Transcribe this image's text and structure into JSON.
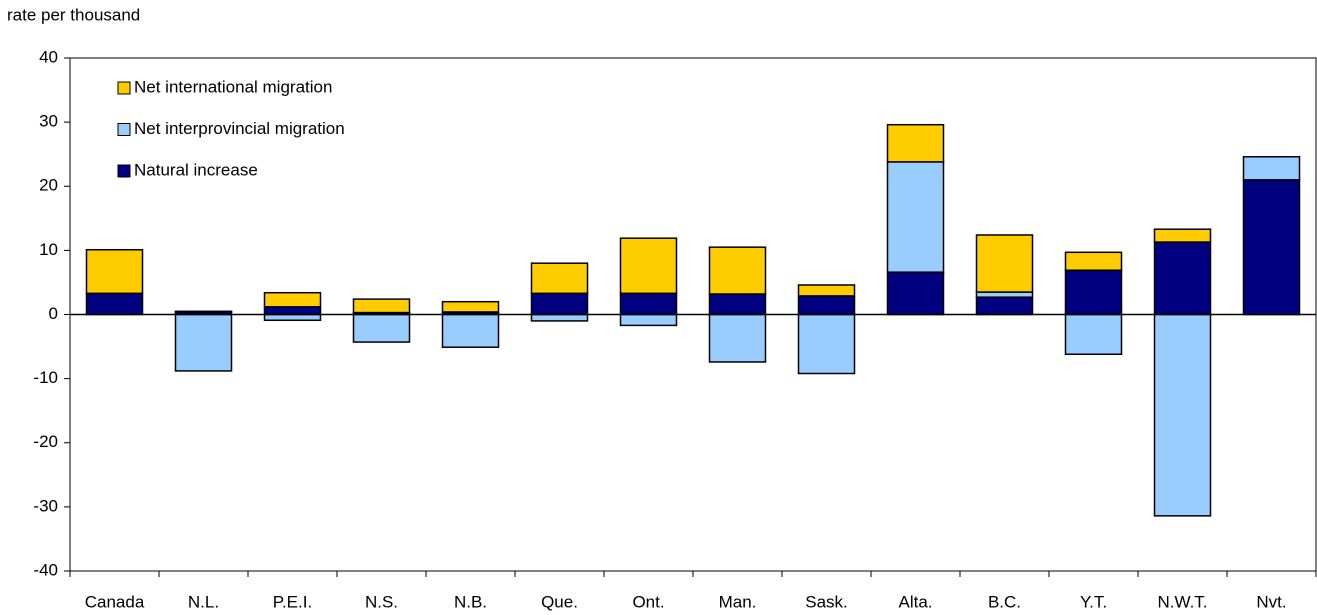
{
  "chart_data": {
    "type": "stacked_bar",
    "y_label": "rate per thousand",
    "categories": [
      "Canada",
      "N.L.",
      "P.E.I.",
      "N.S.",
      "N.B.",
      "Que.",
      "Ont.",
      "Man.",
      "Sask.",
      "Alta.",
      "B.C.",
      "Y.T.",
      "N.W.T.",
      "Nvt."
    ],
    "series": [
      {
        "name": "Natural increase",
        "color": "#000080",
        "values": [
          3.3,
          0.4,
          1.2,
          0.3,
          0.4,
          3.3,
          3.3,
          3.2,
          2.9,
          6.6,
          2.7,
          6.9,
          11.3,
          21.0
        ]
      },
      {
        "name": "Net interprovincial migration",
        "color": "#99ccff",
        "values": [
          0,
          -8.8,
          -0.9,
          -4.3,
          -5.1,
          -1.0,
          -1.7,
          -7.4,
          -9.2,
          17.2,
          0.8,
          -6.2,
          -31.4,
          3.6
        ]
      },
      {
        "name": "Net international migration",
        "color": "#ffcc00",
        "values": [
          6.8,
          0.1,
          2.2,
          2.1,
          1.6,
          4.7,
          8.6,
          7.3,
          1.7,
          5.8,
          8.9,
          2.8,
          2.0,
          0
        ]
      }
    ],
    "ylim": [
      -40,
      40
    ],
    "yticks": [
      -40,
      -30,
      -20,
      -10,
      0,
      10,
      20,
      30,
      40
    ],
    "legend": "top-left",
    "grid": false
  }
}
